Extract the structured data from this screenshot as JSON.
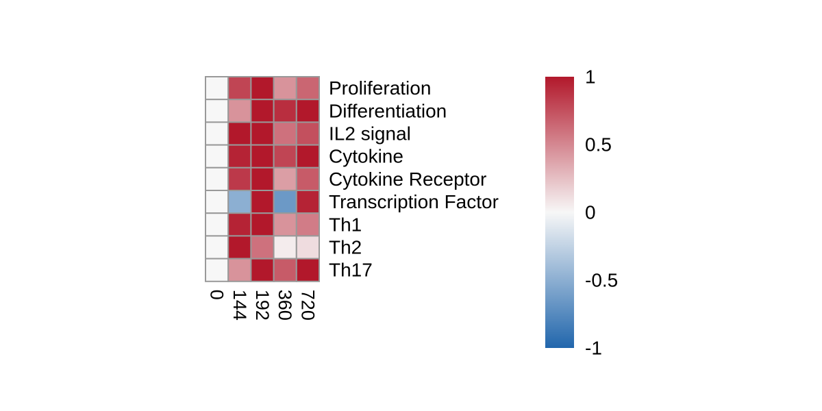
{
  "chart_data": {
    "type": "heatmap",
    "title": "",
    "rows": [
      "Proliferation",
      "Differentiation",
      "IL2 signal",
      "Cytokine",
      "Cytokine Receptor",
      "Transcription Factor",
      "Th1",
      "Th2",
      "Th17"
    ],
    "columns": [
      "0",
      "144",
      "192",
      "360",
      "720"
    ],
    "values": [
      [
        0,
        0.8,
        1.0,
        0.45,
        0.65
      ],
      [
        0,
        0.45,
        1.0,
        0.9,
        1.0
      ],
      [
        0,
        1.0,
        1.0,
        0.6,
        0.75
      ],
      [
        0,
        0.95,
        1.0,
        0.8,
        1.0
      ],
      [
        0,
        0.85,
        1.0,
        0.4,
        0.7
      ],
      [
        0,
        -0.5,
        1.0,
        -0.65,
        0.95
      ],
      [
        0,
        0.95,
        1.0,
        0.45,
        0.55
      ],
      [
        0,
        1.0,
        0.6,
        0.05,
        0.12
      ],
      [
        0,
        0.45,
        1.0,
        0.7,
        1.0
      ]
    ],
    "color_scale": {
      "min": -1,
      "max": 1,
      "low_color": "#2166ac",
      "mid_color": "#f7f7f7",
      "high_color": "#b2182b"
    },
    "legend_ticks": [
      1,
      0.5,
      0,
      -0.5,
      -1
    ],
    "legend_tick_labels": [
      "1",
      "0.5",
      "0",
      "-0.5",
      "-1"
    ],
    "grid_color": "#999999"
  }
}
